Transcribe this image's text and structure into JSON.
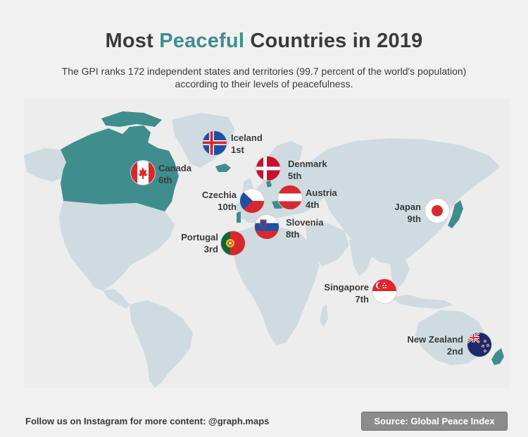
{
  "title": {
    "prefix": "Most ",
    "accent": "Peaceful",
    "suffix": " Countries in 2019"
  },
  "subtitle": "The GPI ranks 172 independent states and territories (99.7 percent of the world's population) according to their levels of peacefulness.",
  "countries": [
    {
      "name": "Iceland",
      "rank": "1st"
    },
    {
      "name": "New Zealand",
      "rank": "2nd"
    },
    {
      "name": "Portugal",
      "rank": "3rd"
    },
    {
      "name": "Austria",
      "rank": "4th"
    },
    {
      "name": "Denmark",
      "rank": "5th"
    },
    {
      "name": "Canada",
      "rank": "6th"
    },
    {
      "name": "Singapore",
      "rank": "7th"
    },
    {
      "name": "Slovenia",
      "rank": "8th"
    },
    {
      "name": "Japan",
      "rank": "9th"
    },
    {
      "name": "Czechia",
      "rank": "10th"
    }
  ],
  "colors": {
    "highlight": "#3f8e8d",
    "land": "#cfdbe0",
    "background": "#f1f1f1"
  },
  "footer": {
    "follow_text": "Follow us on Instagram for more content: @graph.maps",
    "source": "Source: Global Peace Index"
  }
}
